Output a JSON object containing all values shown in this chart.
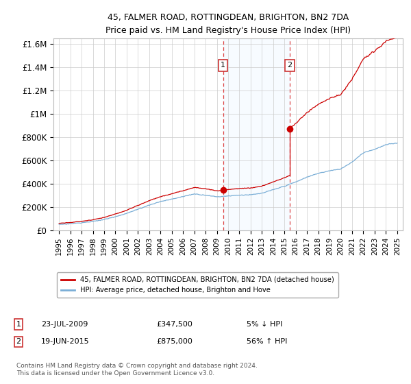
{
  "title": "45, FALMER ROAD, ROTTINGDEAN, BRIGHTON, BN2 7DA",
  "subtitle": "Price paid vs. HM Land Registry's House Price Index (HPI)",
  "ylabel_ticks": [
    "£0",
    "£200K",
    "£400K",
    "£600K",
    "£800K",
    "£1M",
    "£1.2M",
    "£1.4M",
    "£1.6M"
  ],
  "ytick_values": [
    0,
    200000,
    400000,
    600000,
    800000,
    1000000,
    1200000,
    1400000,
    1600000
  ],
  "ylim": [
    0,
    1650000
  ],
  "xlim_start": 1994.5,
  "xlim_end": 2025.5,
  "sale1_date": 2009.55,
  "sale1_price": 347500,
  "sale1_label": "1",
  "sale2_date": 2015.46,
  "sale2_price": 875000,
  "sale2_label": "2",
  "sale1_text": "23-JUL-2009",
  "sale1_amount": "£347,500",
  "sale1_hpi": "5% ↓ HPI",
  "sale2_text": "19-JUN-2015",
  "sale2_amount": "£875,000",
  "sale2_hpi": "56% ↑ HPI",
  "legend_label1": "45, FALMER ROAD, ROTTINGDEAN, BRIGHTON, BN2 7DA (detached house)",
  "legend_label2": "HPI: Average price, detached house, Brighton and Hove",
  "footer": "Contains HM Land Registry data © Crown copyright and database right 2024.\nThis data is licensed under the Open Government Licence v3.0.",
  "line1_color": "#cc0000",
  "line2_color": "#7aaed6",
  "marker_color": "#cc0000",
  "shade_color": "#ddeeff",
  "vline_color": "#dd4444",
  "background_color": "#ffffff",
  "grid_color": "#cccccc"
}
